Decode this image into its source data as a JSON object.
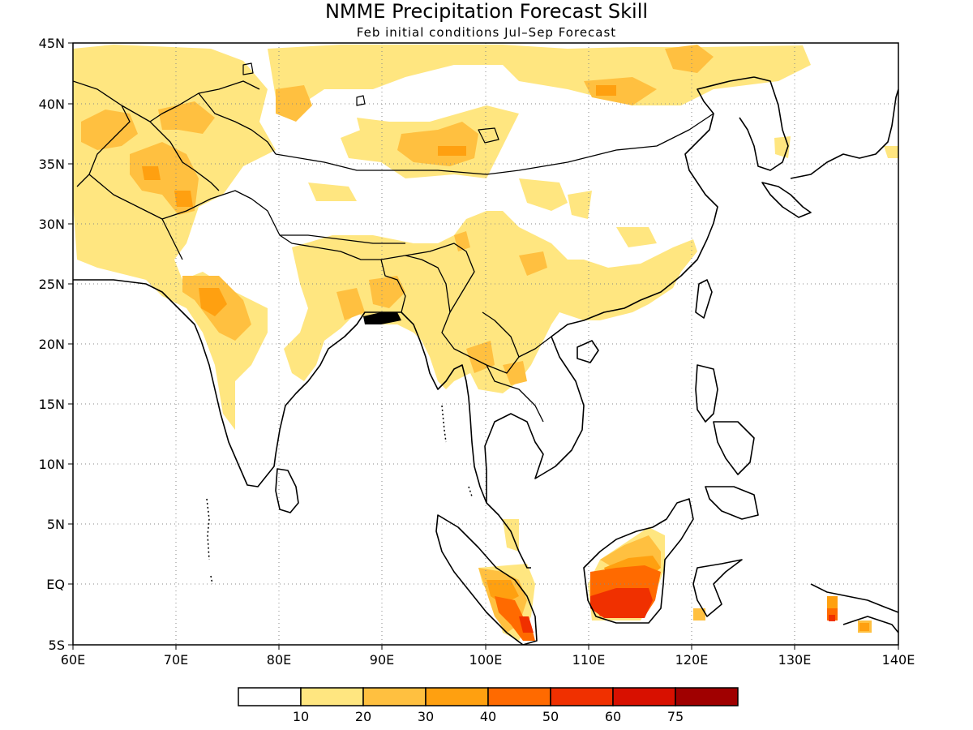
{
  "title": "NMME Precipitation Forecast Skill",
  "subtitle": "Feb initial conditions  Jul–Sep Forecast",
  "lat_labels": [
    "45N",
    "40N",
    "35N",
    "30N",
    "25N",
    "20N",
    "15N",
    "10N",
    "5N",
    "EQ",
    "5S"
  ],
  "lon_labels": [
    "60E",
    "70E",
    "80E",
    "90E",
    "100E",
    "110E",
    "120E",
    "130E",
    "140E"
  ],
  "colorbar": {
    "colors": [
      "#ffffff",
      "#ffe680",
      "#ffc040",
      "#ffa010",
      "#ff6a00",
      "#f03000",
      "#d81000",
      "#a00000"
    ],
    "labels": [
      "10",
      "20",
      "30",
      "40",
      "50",
      "60",
      "75"
    ]
  }
}
